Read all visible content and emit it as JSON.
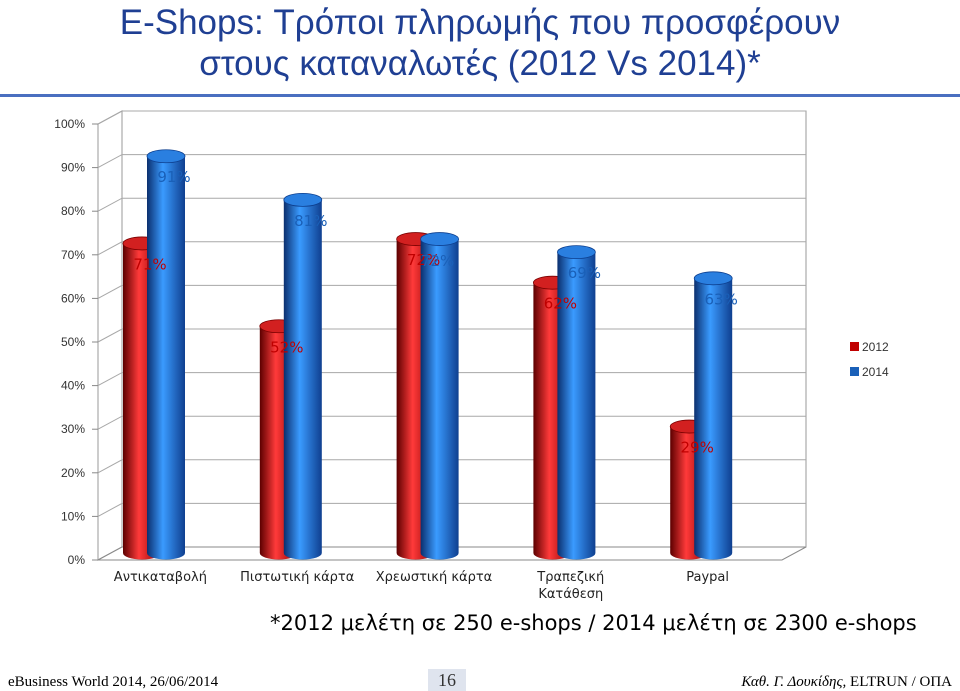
{
  "title": {
    "line1": "E-Shops: Τρόποι πληρωμής που προσφέρουν",
    "line2": "στους καταναλωτές (2012 Vs 2014)*"
  },
  "chart_data": {
    "type": "bar",
    "categories": [
      [
        "Αντικαταβολή"
      ],
      [
        "Πιστωτική κάρτα"
      ],
      [
        "Χρεωστική κάρτα"
      ],
      [
        "Τραπεζική",
        "Κατάθεση"
      ],
      [
        "Paypal"
      ]
    ],
    "series": [
      {
        "name": "2012",
        "values": [
          71,
          52,
          72,
          62,
          29
        ],
        "color": "#c00000",
        "labels": [
          "71%",
          "52%",
          "72%",
          "62%",
          "29%"
        ]
      },
      {
        "name": "2014",
        "values": [
          91,
          81,
          72,
          69,
          63
        ],
        "color": "#1a60b8",
        "labels": [
          "91%",
          "81%",
          "",
          "69%",
          "63%"
        ]
      }
    ],
    "yticks": [
      "0%",
      "10%",
      "20%",
      "30%",
      "40%",
      "50%",
      "60%",
      "70%",
      "80%",
      "90%",
      "100%"
    ],
    "ylim": [
      0,
      100
    ],
    "grid": true,
    "legend": "right"
  },
  "footnote": "*2012 μελέτη σε 250 e-shops / 2014 μελέτη σε 2300 e-shops",
  "footer": {
    "left": "eBusiness World 2014, 26/06/2014",
    "page": "16",
    "right_italic": "Καθ. Γ. Δουκίδης,",
    "right_plain": " ELTRUN / ΟΠΑ"
  }
}
